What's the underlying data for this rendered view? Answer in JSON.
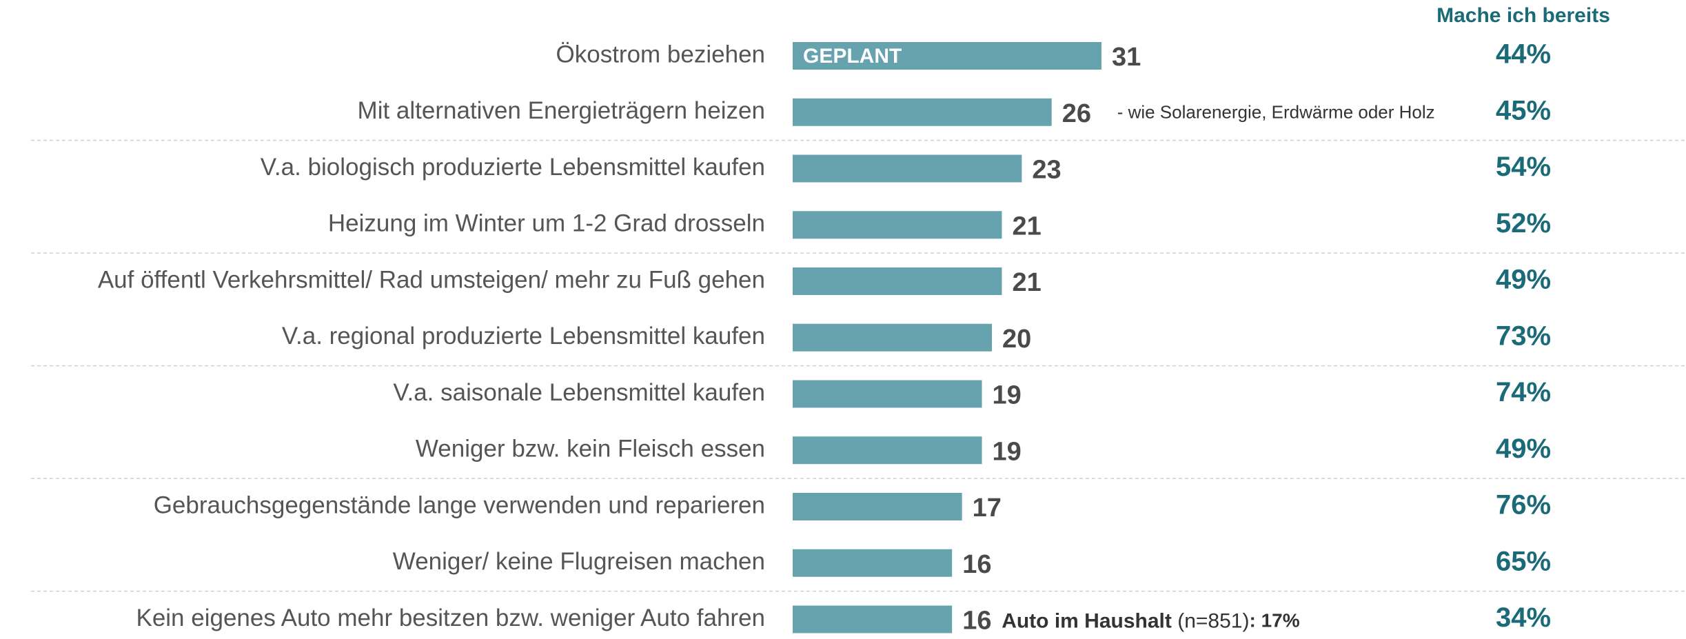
{
  "chart_data": {
    "type": "bar",
    "categories": [
      "Ökostrom beziehen",
      "Mit alternativen Energieträgern heizen",
      "V.a. biologisch produzierte Lebensmittel kaufen",
      "Heizung im Winter um 1-2 Grad drosseln",
      "Auf öffentl Verkehrsmittel/ Rad umsteigen/ mehr zu Fuß gehen",
      "V.a. regional produzierte Lebensmittel kaufen",
      "V.a. saisonale Lebensmittel kaufen",
      "Weniger bzw. kein Fleisch essen",
      "Gebrauchsgegenstände lange verwenden und reparieren",
      "Weniger/ keine Flugreisen machen",
      "Kein eigenes Auto mehr besitzen bzw. weniger Auto fahren"
    ],
    "series": [
      {
        "name": "GEPLANT",
        "color": "#67a3ae",
        "values": [
          31,
          26,
          23,
          21,
          21,
          20,
          19,
          19,
          17,
          16,
          16
        ]
      },
      {
        "name": "Mache ich bereits",
        "color": "#1b6a78",
        "values": [
          44,
          45,
          54,
          52,
          49,
          73,
          74,
          49,
          76,
          65,
          34
        ],
        "value_labels": [
          "44%",
          "45%",
          "54%",
          "52%",
          "49%",
          "73%",
          "74%",
          "49%",
          "76%",
          "65%",
          "34%"
        ]
      }
    ],
    "annotations": [
      {
        "row": 1,
        "text": "- wie Solarenergie, Erdwärme oder Holz"
      },
      {
        "row": 10,
        "bold": "Auto im Haushalt",
        "text": "(n=851)",
        "value_label": ": 17%"
      }
    ]
  }
}
